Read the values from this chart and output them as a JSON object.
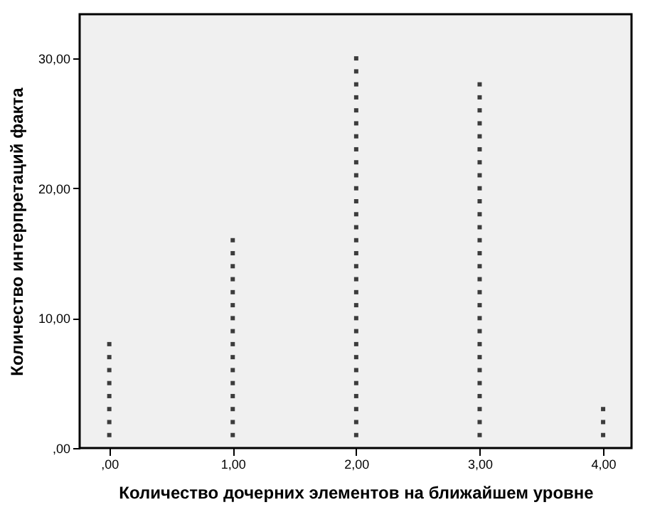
{
  "chart_data": {
    "type": "scatter",
    "xlabel": "Количество дочерних элементов на ближайшем уровне",
    "ylabel": "Количество интерпретаций факта",
    "x": [
      0,
      0,
      0,
      0,
      0,
      0,
      0,
      0,
      1,
      1,
      1,
      1,
      1,
      1,
      1,
      1,
      1,
      1,
      1,
      1,
      1,
      1,
      1,
      1,
      2,
      2,
      2,
      2,
      2,
      2,
      2,
      2,
      2,
      2,
      2,
      2,
      2,
      2,
      2,
      2,
      2,
      2,
      2,
      2,
      2,
      2,
      2,
      2,
      2,
      2,
      2,
      2,
      2,
      2,
      3,
      3,
      3,
      3,
      3,
      3,
      3,
      3,
      3,
      3,
      3,
      3,
      3,
      3,
      3,
      3,
      3,
      3,
      3,
      3,
      3,
      3,
      3,
      3,
      3,
      3,
      3,
      3,
      4,
      4,
      4
    ],
    "series": [
      {
        "color": "#000000",
        "values": [
          1,
          2,
          3,
          4,
          5,
          6,
          7,
          8,
          1,
          2,
          3,
          4,
          5,
          6,
          7,
          8,
          9,
          10,
          11,
          12,
          13,
          14,
          15,
          16,
          1,
          2,
          3,
          4,
          5,
          6,
          7,
          8,
          9,
          10,
          11,
          12,
          13,
          14,
          15,
          16,
          17,
          18,
          19,
          20,
          21,
          22,
          23,
          24,
          25,
          26,
          27,
          28,
          29,
          30,
          1,
          2,
          3,
          4,
          5,
          6,
          7,
          8,
          9,
          10,
          11,
          12,
          13,
          14,
          15,
          16,
          17,
          18,
          19,
          20,
          21,
          22,
          23,
          24,
          25,
          26,
          27,
          28,
          1,
          2,
          3
        ]
      }
    ],
    "xlim": [
      -0.24,
      4.23
    ],
    "ylim": [
      0,
      33.4
    ],
    "xticks": [
      {
        "value": 0,
        "label": ",00"
      },
      {
        "value": 1,
        "label": "1,00"
      },
      {
        "value": 2,
        "label": "2,00"
      },
      {
        "value": 3,
        "label": "3,00"
      },
      {
        "value": 4,
        "label": "4,00"
      }
    ],
    "yticks": [
      {
        "value": 0,
        "label": ",00"
      },
      {
        "value": 10,
        "label": "10,00"
      },
      {
        "value": 20,
        "label": "20,00"
      },
      {
        "value": 30,
        "label": "30,00"
      }
    ],
    "grid": false,
    "legend": false,
    "marker": "square"
  }
}
